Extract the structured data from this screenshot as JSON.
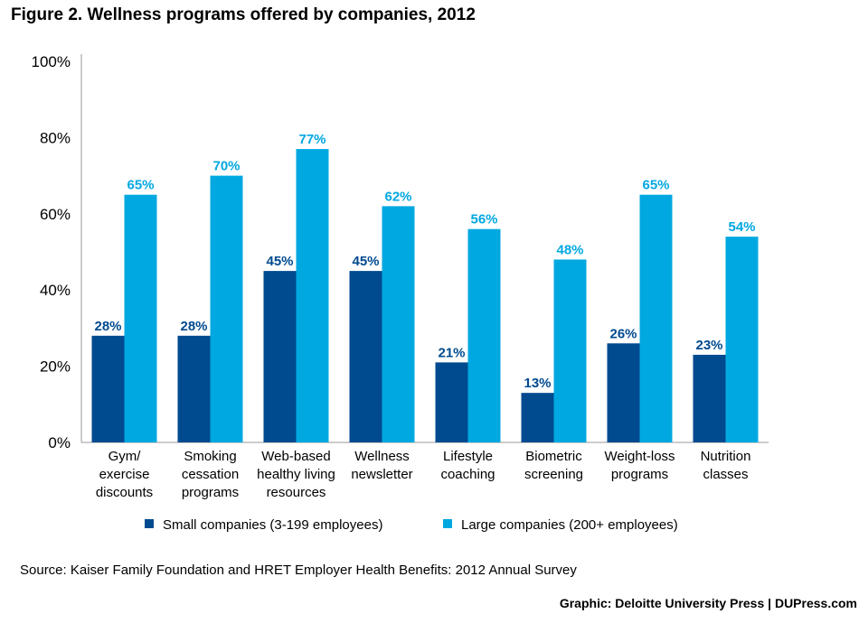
{
  "title": "Figure 2. Wellness programs offered by companies, 2012",
  "source": "Source: Kaiser Family Foundation and HRET Employer Health Benefits: 2012 Annual Survey",
  "credit": "Graphic: Deloitte University Press  |  DUPress.com",
  "colors": {
    "small": "#004a8f",
    "large": "#00a8e1",
    "axis": "#999999"
  },
  "chart_data": {
    "type": "bar",
    "title": "Figure 2. Wellness programs offered by companies, 2012",
    "xlabel": "",
    "ylabel": "",
    "ylim": [
      0,
      100
    ],
    "yticks": [
      "0%",
      "20%",
      "40%",
      "60%",
      "80%",
      "100%"
    ],
    "grid": false,
    "legend": "bottom",
    "categories": [
      [
        "Gym/",
        "exercise",
        "discounts"
      ],
      [
        "Smoking",
        "cessation",
        "programs"
      ],
      [
        "Web-based",
        "healthy living",
        "resources"
      ],
      [
        "Wellness",
        "newsletter"
      ],
      [
        "Lifestyle",
        "coaching"
      ],
      [
        "Biometric",
        "screening"
      ],
      [
        "Weight-loss",
        "programs"
      ],
      [
        "Nutrition",
        "classes"
      ]
    ],
    "series": [
      {
        "name": "Small companies (3-199 employees)",
        "values": [
          28,
          28,
          45,
          45,
          21,
          13,
          26,
          23
        ],
        "labels": [
          "28%",
          "28%",
          "45%",
          "45%",
          "21%",
          "13%",
          "26%",
          "23%"
        ]
      },
      {
        "name": "Large companies (200+ employees)",
        "values": [
          65,
          70,
          77,
          62,
          56,
          48,
          65,
          54
        ],
        "labels": [
          "65%",
          "70%",
          "77%",
          "62%",
          "56%",
          "48%",
          "65%",
          "54%"
        ]
      }
    ]
  }
}
